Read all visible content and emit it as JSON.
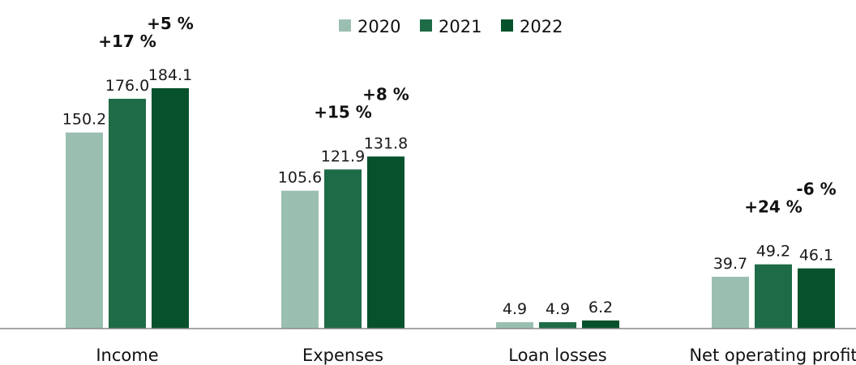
{
  "chart_data": {
    "type": "bar",
    "categories": [
      "Income",
      "Expenses",
      "Loan losses",
      "Net operating profit"
    ],
    "series": [
      {
        "name": "2020",
        "color": "#9abfb1",
        "values": [
          150.2,
          105.6,
          4.9,
          39.7
        ]
      },
      {
        "name": "2021",
        "color": "#1e6b48",
        "values": [
          176.0,
          121.9,
          4.9,
          49.2
        ]
      },
      {
        "name": "2022",
        "color": "#07522c",
        "values": [
          184.1,
          131.8,
          6.2,
          46.1
        ]
      }
    ],
    "value_labels": [
      [
        "150.2",
        "176.0",
        "184.1"
      ],
      [
        "105.6",
        "121.9",
        "131.8"
      ],
      [
        "4.9",
        "4.9",
        "6.2"
      ],
      [
        "39.7",
        "49.2",
        "46.1"
      ]
    ],
    "changes": [
      {
        "category": "Income",
        "vs_2020": "+17 %",
        "vs_2021": "+5 %"
      },
      {
        "category": "Expenses",
        "vs_2020": "+15 %",
        "vs_2021": "+8 %"
      },
      {
        "category": "Net operating profit",
        "vs_2020": "+24 %",
        "vs_2021": "-6 %"
      }
    ],
    "ylim": [
      0,
      200
    ],
    "grid": false,
    "legend_position": "top-center"
  }
}
